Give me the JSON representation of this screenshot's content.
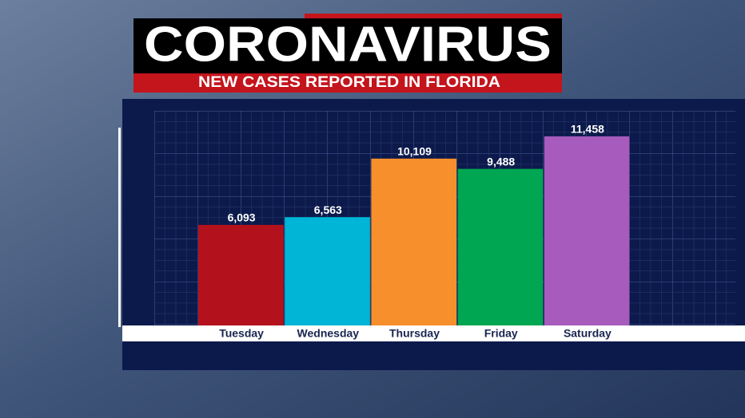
{
  "chart_data": {
    "type": "bar",
    "title": "CORONAVIRUS",
    "subtitle": "NEW CASES REPORTED IN FLORIDA",
    "categories": [
      "Tuesday",
      "Wednesday",
      "Thursday",
      "Friday",
      "Saturday"
    ],
    "values": [
      6093,
      6563,
      10109,
      9488,
      11458
    ],
    "value_labels": [
      "6,093",
      "6,563",
      "10,109",
      "9,488",
      "11,458"
    ],
    "colors": [
      "#b3121c",
      "#00b5d6",
      "#f68f2c",
      "#00a651",
      "#a75bbc"
    ],
    "ylim": [
      0,
      13000
    ]
  }
}
